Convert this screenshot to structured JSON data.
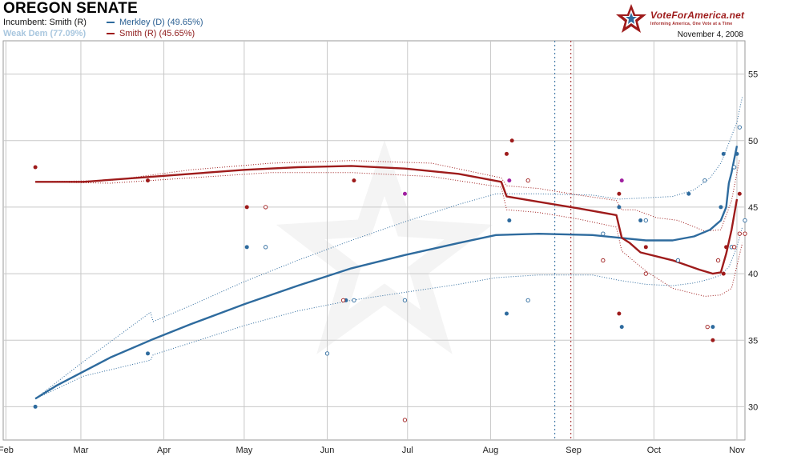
{
  "header": {
    "title": "OREGON SENATE",
    "incumbent": "Incumbent: Smith (R)",
    "lean": "Weak Dem (77.09%)",
    "legend": [
      {
        "label": "Merkley (D) (49.65%)",
        "color": "#2e6b9e"
      },
      {
        "label": "Smith (R) (45.65%)",
        "color": "#9e1b1b"
      }
    ],
    "brand": "VoteForAmerica.net",
    "brand_tagline": "Informing America, One Vote at a Time",
    "date": "November 4, 2008"
  },
  "colors": {
    "dem": "#2e6b9e",
    "rep": "#9e1b1b",
    "mixed": "#a020a0",
    "grid": "#c8c8c8"
  },
  "chart_data": {
    "type": "line",
    "x_ticks": [
      "Feb",
      "Mar",
      "Apr",
      "May",
      "Jun",
      "Jul",
      "Aug",
      "Sep",
      "Oct",
      "Nov"
    ],
    "x_tick_days": [
      1,
      29,
      60,
      90,
      121,
      151,
      182,
      213,
      243,
      274
    ],
    "y_ticks": [
      30,
      35,
      40,
      45,
      50,
      55
    ],
    "xlim_days": [
      0,
      277
    ],
    "ylim": [
      27.5,
      57.5
    ],
    "x_unit": "days from Feb 1, 2008",
    "event_lines": [
      {
        "day": 206,
        "color": "#2e6b9e"
      },
      {
        "day": 212,
        "color": "#9e1b1b"
      }
    ],
    "series": [
      {
        "name": "Merkley (D)",
        "color": "#2e6b9e",
        "trend": [
          [
            12,
            30.6
          ],
          [
            20,
            31.6
          ],
          [
            40,
            33.7
          ],
          [
            55,
            35.0
          ],
          [
            70,
            36.2
          ],
          [
            90,
            37.7
          ],
          [
            110,
            39.1
          ],
          [
            130,
            40.4
          ],
          [
            150,
            41.4
          ],
          [
            170,
            42.3
          ],
          [
            184,
            42.9
          ],
          [
            200,
            43.0
          ],
          [
            220,
            42.9
          ],
          [
            230,
            42.7
          ],
          [
            240,
            42.5
          ],
          [
            250,
            42.5
          ],
          [
            258,
            42.8
          ],
          [
            264,
            43.3
          ],
          [
            268,
            44.0
          ],
          [
            270,
            45.0
          ],
          [
            271,
            46.8
          ],
          [
            272,
            47.6
          ],
          [
            273,
            48.6
          ],
          [
            274,
            49.6
          ]
        ],
        "band_upper": [
          [
            12,
            30.6
          ],
          [
            30,
            33.4
          ],
          [
            55,
            37.1
          ],
          [
            56,
            36.4
          ],
          [
            70,
            37.6
          ],
          [
            90,
            39.4
          ],
          [
            110,
            41.0
          ],
          [
            130,
            42.5
          ],
          [
            150,
            43.9
          ],
          [
            170,
            45.2
          ],
          [
            184,
            46.0
          ],
          [
            200,
            46.0
          ],
          [
            220,
            45.9
          ],
          [
            230,
            45.6
          ],
          [
            240,
            45.7
          ],
          [
            250,
            45.8
          ],
          [
            258,
            46.3
          ],
          [
            264,
            47.2
          ],
          [
            268,
            48.3
          ],
          [
            271,
            49.8
          ],
          [
            274,
            51.4
          ],
          [
            276,
            53.3
          ]
        ],
        "band_lower": [
          [
            12,
            30.6
          ],
          [
            30,
            32.3
          ],
          [
            55,
            33.5
          ],
          [
            56,
            33.9
          ],
          [
            70,
            34.8
          ],
          [
            90,
            36.1
          ],
          [
            110,
            37.2
          ],
          [
            130,
            38.0
          ],
          [
            150,
            38.6
          ],
          [
            170,
            39.2
          ],
          [
            184,
            39.7
          ],
          [
            200,
            39.9
          ],
          [
            220,
            39.9
          ],
          [
            230,
            39.5
          ],
          [
            240,
            39.2
          ],
          [
            250,
            39.1
          ],
          [
            258,
            39.3
          ],
          [
            264,
            39.6
          ],
          [
            268,
            39.9
          ],
          [
            271,
            40.5
          ],
          [
            274,
            42.0
          ],
          [
            276,
            43.5
          ]
        ],
        "polls_filled": [
          [
            12,
            30
          ],
          [
            54,
            34
          ],
          [
            91,
            42
          ],
          [
            128,
            38
          ],
          [
            188,
            37
          ],
          [
            189,
            44
          ],
          [
            230,
            45
          ],
          [
            231,
            36
          ],
          [
            238,
            44
          ],
          [
            256,
            46
          ],
          [
            265,
            36
          ],
          [
            268,
            45
          ],
          [
            269,
            49
          ],
          [
            274,
            49
          ]
        ],
        "polls_open": [
          [
            98,
            42
          ],
          [
            121,
            34
          ],
          [
            131,
            38
          ],
          [
            150,
            38
          ],
          [
            196,
            38
          ],
          [
            224,
            43
          ],
          [
            240,
            44
          ],
          [
            252,
            41
          ],
          [
            262,
            47
          ],
          [
            272,
            42
          ],
          [
            273,
            48
          ],
          [
            275,
            51
          ],
          [
            277,
            44
          ]
        ]
      },
      {
        "name": "Smith (R)",
        "color": "#9e1b1b",
        "trend": [
          [
            12,
            46.9
          ],
          [
            30,
            46.9
          ],
          [
            50,
            47.2
          ],
          [
            70,
            47.5
          ],
          [
            90,
            47.8
          ],
          [
            110,
            48.0
          ],
          [
            130,
            48.1
          ],
          [
            150,
            47.9
          ],
          [
            170,
            47.5
          ],
          [
            186,
            46.9
          ],
          [
            188,
            45.8
          ],
          [
            200,
            45.4
          ],
          [
            215,
            44.9
          ],
          [
            229,
            44.4
          ],
          [
            231,
            42.7
          ],
          [
            234,
            42.3
          ],
          [
            238,
            41.6
          ],
          [
            250,
            41.0
          ],
          [
            260,
            40.3
          ],
          [
            265,
            40.0
          ],
          [
            268,
            40.1
          ],
          [
            270,
            41.5
          ],
          [
            272,
            43.3
          ],
          [
            274,
            45.6
          ]
        ],
        "band_upper": [
          [
            12,
            46.9
          ],
          [
            40,
            47.0
          ],
          [
            70,
            47.8
          ],
          [
            100,
            48.3
          ],
          [
            130,
            48.5
          ],
          [
            160,
            48.3
          ],
          [
            186,
            47.2
          ],
          [
            188,
            46.6
          ],
          [
            200,
            46.4
          ],
          [
            215,
            45.9
          ],
          [
            229,
            45.5
          ],
          [
            231,
            44.8
          ],
          [
            236,
            44.8
          ],
          [
            244,
            44.2
          ],
          [
            252,
            44.0
          ],
          [
            262,
            43.2
          ],
          [
            268,
            43.3
          ],
          [
            272,
            45.5
          ],
          [
            275,
            48.6
          ]
        ],
        "band_lower": [
          [
            12,
            46.9
          ],
          [
            40,
            46.8
          ],
          [
            70,
            47.2
          ],
          [
            100,
            47.6
          ],
          [
            130,
            47.6
          ],
          [
            160,
            47.3
          ],
          [
            186,
            46.5
          ],
          [
            188,
            44.8
          ],
          [
            200,
            44.6
          ],
          [
            215,
            44.1
          ],
          [
            229,
            43.5
          ],
          [
            231,
            41.7
          ],
          [
            240,
            40.2
          ],
          [
            250,
            38.9
          ],
          [
            262,
            38.3
          ],
          [
            268,
            38.4
          ],
          [
            272,
            38.9
          ],
          [
            274,
            40.6
          ],
          [
            276,
            42.3
          ]
        ],
        "polls_filled": [
          [
            12,
            48
          ],
          [
            54,
            47
          ],
          [
            91,
            45
          ],
          [
            131,
            47
          ],
          [
            188,
            49
          ],
          [
            190,
            50
          ],
          [
            230,
            46
          ],
          [
            230,
            37
          ],
          [
            240,
            42
          ],
          [
            265,
            35
          ],
          [
            269,
            40
          ],
          [
            270,
            42
          ],
          [
            275,
            46
          ]
        ],
        "polls_open": [
          [
            98,
            45
          ],
          [
            127,
            38
          ],
          [
            150,
            29
          ],
          [
            196,
            47
          ],
          [
            224,
            41
          ],
          [
            240,
            40
          ],
          [
            263,
            36
          ],
          [
            267,
            41
          ],
          [
            273,
            42
          ],
          [
            275,
            43
          ],
          [
            277,
            43
          ]
        ]
      }
    ],
    "polls_mixed": [
      [
        150,
        46
      ],
      [
        231,
        47
      ],
      [
        189,
        47
      ]
    ]
  }
}
